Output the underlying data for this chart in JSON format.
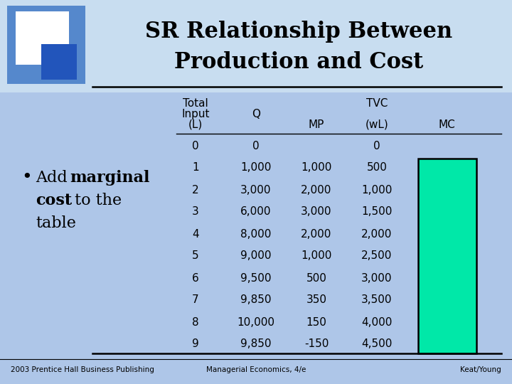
{
  "title_line1": "SR Relationship Between",
  "title_line2": "Production and Cost",
  "bg_color": "#b8d0ea",
  "body_bg_color": "#aec6e8",
  "L": [
    0,
    1,
    2,
    3,
    4,
    5,
    6,
    7,
    8,
    9
  ],
  "Q": [
    "0",
    "1,000",
    "3,000",
    "6,000",
    "8,000",
    "9,000",
    "9,500",
    "9,850",
    "10,000",
    "9,850"
  ],
  "MP": [
    "",
    "1,000",
    "2,000",
    "3,000",
    "2,000",
    "1,000",
    "500",
    "350",
    "150",
    "-150"
  ],
  "TVC": [
    "0",
    "500",
    "1,000",
    "1,500",
    "2,000",
    "2,500",
    "3,000",
    "3,500",
    "4,000",
    "4,500"
  ],
  "MC_box_color": "#00e8a8",
  "footer_left": "2003 Prentice Hall Business Publishing",
  "footer_center": "Managerial Economics, 4/e",
  "footer_right": "Keat/Young",
  "dark_blue": "#2255bb",
  "medium_blue": "#5588cc",
  "white": "#ffffff",
  "title_top_bg": "#c8ddf0"
}
